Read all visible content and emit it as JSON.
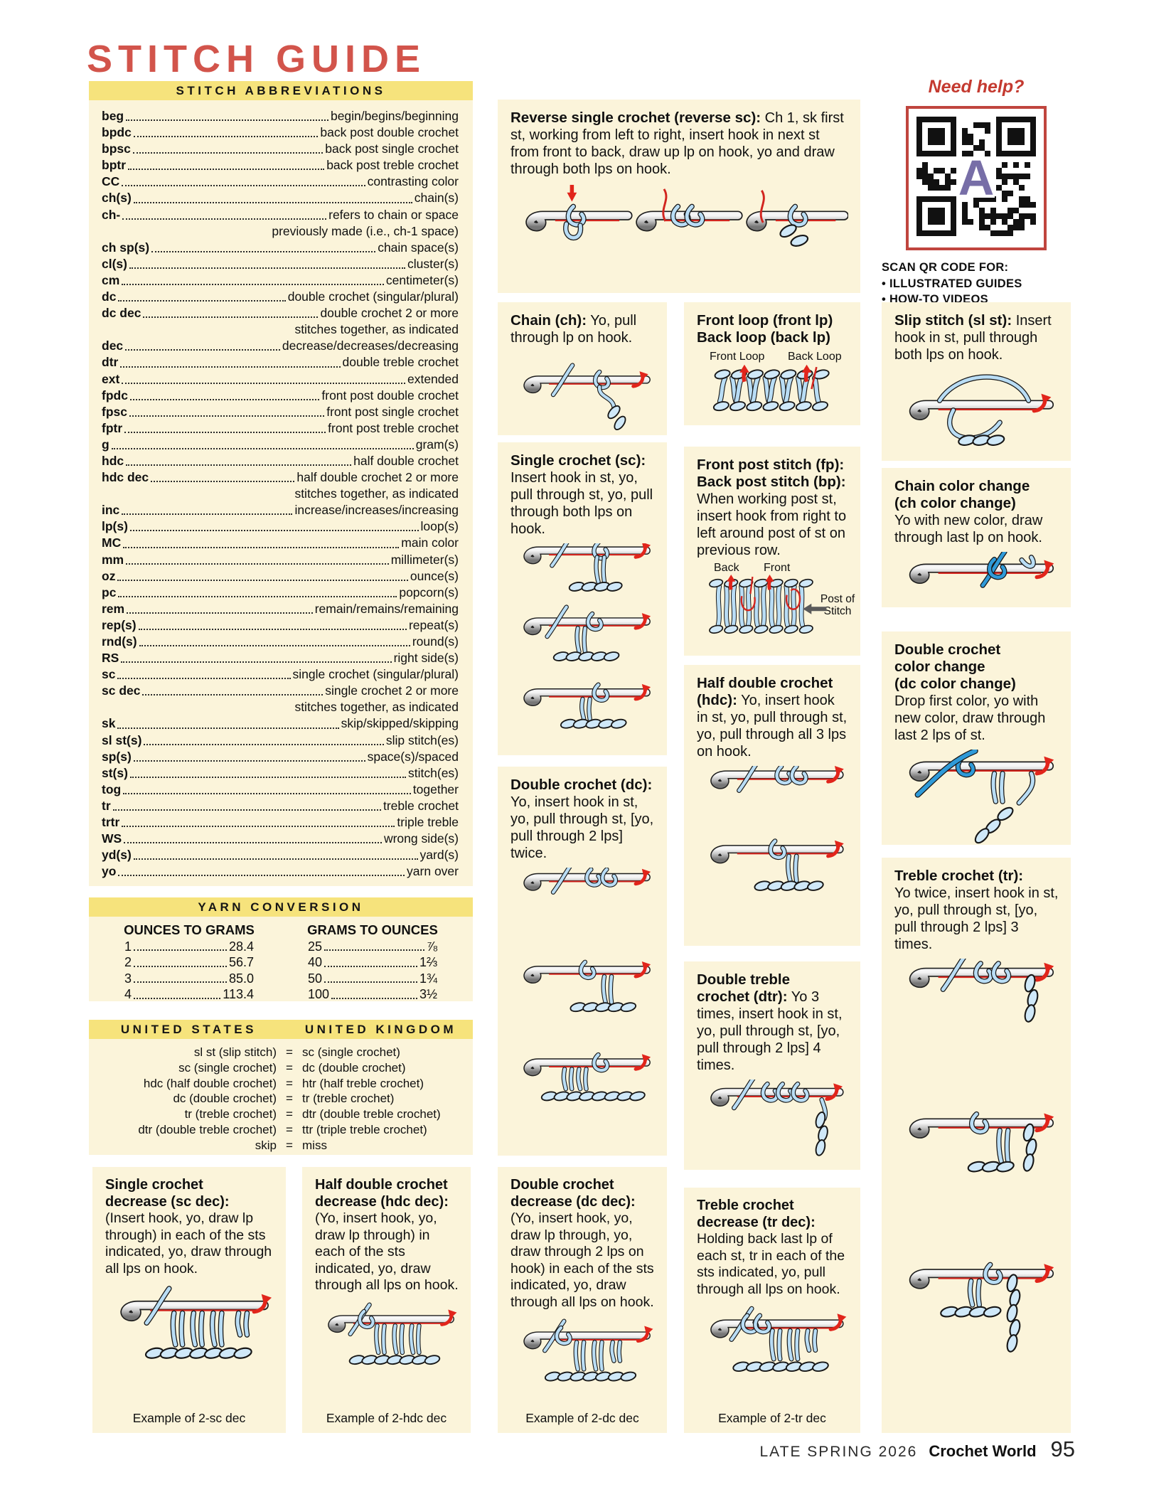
{
  "page": {
    "title": "STITCH GUIDE",
    "footer": {
      "issue": "LATE SPRING 2026",
      "magazine": "Crochet World",
      "page_number": "95"
    }
  },
  "help": {
    "title": "Need help?",
    "qr_letter": "A",
    "scan_heading": "SCAN QR CODE FOR:",
    "scan_items": [
      "• ILLUSTRATED GUIDES",
      "• HOW-TO VIDEOS"
    ]
  },
  "abbreviations": {
    "heading": "STITCH ABBREVIATIONS",
    "items": [
      {
        "abbr": "beg",
        "meaning": "begin/begins/beginning"
      },
      {
        "abbr": "bpdc",
        "meaning": "back post double crochet"
      },
      {
        "abbr": "bpsc",
        "meaning": "back post single crochet"
      },
      {
        "abbr": "bptr",
        "meaning": "back post treble crochet"
      },
      {
        "abbr": "CC",
        "meaning": "contrasting color"
      },
      {
        "abbr": "ch(s)",
        "meaning": "chain(s)"
      },
      {
        "abbr": "ch-",
        "meaning": "refers to chain or space",
        "cont": "previously made (i.e., ch-1 space)"
      },
      {
        "abbr": "ch sp(s)",
        "meaning": "chain space(s)"
      },
      {
        "abbr": "cl(s)",
        "meaning": "cluster(s)"
      },
      {
        "abbr": "cm",
        "meaning": "centimeter(s)"
      },
      {
        "abbr": "dc",
        "meaning": "double crochet (singular/plural)"
      },
      {
        "abbr": "dc dec",
        "meaning": "double crochet 2 or more",
        "cont": "stitches together, as indicated"
      },
      {
        "abbr": "dec",
        "meaning": "decrease/decreases/decreasing"
      },
      {
        "abbr": "dtr",
        "meaning": "double treble crochet"
      },
      {
        "abbr": "ext",
        "meaning": "extended"
      },
      {
        "abbr": "fpdc",
        "meaning": "front post double crochet"
      },
      {
        "abbr": "fpsc",
        "meaning": "front post single crochet"
      },
      {
        "abbr": "fptr",
        "meaning": "front post treble crochet"
      },
      {
        "abbr": "g",
        "meaning": "gram(s)"
      },
      {
        "abbr": "hdc",
        "meaning": "half double crochet"
      },
      {
        "abbr": "hdc dec",
        "meaning": "half double crochet 2 or more",
        "cont": "stitches together, as indicated"
      },
      {
        "abbr": "inc",
        "meaning": "increase/increases/increasing"
      },
      {
        "abbr": "lp(s)",
        "meaning": "loop(s)"
      },
      {
        "abbr": "MC",
        "meaning": "main color"
      },
      {
        "abbr": "mm",
        "meaning": "millimeter(s)"
      },
      {
        "abbr": "oz",
        "meaning": "ounce(s)"
      },
      {
        "abbr": "pc",
        "meaning": "popcorn(s)"
      },
      {
        "abbr": "rem",
        "meaning": "remain/remains/remaining"
      },
      {
        "abbr": "rep(s)",
        "meaning": "repeat(s)"
      },
      {
        "abbr": "rnd(s)",
        "meaning": "round(s)"
      },
      {
        "abbr": "RS",
        "meaning": "right side(s)"
      },
      {
        "abbr": "sc",
        "meaning": "single crochet (singular/plural)"
      },
      {
        "abbr": "sc dec",
        "meaning": "single crochet 2 or more",
        "cont": "stitches together, as indicated"
      },
      {
        "abbr": "sk",
        "meaning": "skip/skipped/skipping"
      },
      {
        "abbr": "sl st(s)",
        "meaning": "slip stitch(es)"
      },
      {
        "abbr": "sp(s)",
        "meaning": "space(s)/spaced"
      },
      {
        "abbr": "st(s)",
        "meaning": "stitch(es)"
      },
      {
        "abbr": "tog",
        "meaning": "together"
      },
      {
        "abbr": "tr",
        "meaning": "treble crochet"
      },
      {
        "abbr": "trtr",
        "meaning": "triple treble"
      },
      {
        "abbr": "WS",
        "meaning": "wrong side(s)"
      },
      {
        "abbr": "yd(s)",
        "meaning": "yard(s)"
      },
      {
        "abbr": "yo",
        "meaning": "yarn over"
      }
    ]
  },
  "yarn_conversion": {
    "heading": "YARN CONVERSION",
    "left": {
      "title": "OUNCES TO GRAMS",
      "rows": [
        [
          "1",
          "28.4"
        ],
        [
          "2",
          "56.7"
        ],
        [
          "3",
          "85.0"
        ],
        [
          "4",
          "113.4"
        ]
      ]
    },
    "right": {
      "title": "GRAMS TO OUNCES",
      "rows": [
        [
          "25",
          "⅞"
        ],
        [
          "40",
          "1⅔"
        ],
        [
          "50",
          "1¾"
        ],
        [
          "100",
          "3½"
        ]
      ]
    }
  },
  "us_uk": {
    "heading_left": "UNITED STATES",
    "heading_right": "UNITED KINGDOM",
    "equals": "=",
    "rows": [
      {
        "us": "sl st (slip stitch)",
        "uk": "sc (single crochet)"
      },
      {
        "us": "sc (single crochet)",
        "uk": "dc (double crochet)"
      },
      {
        "us": "hdc (half double crochet)",
        "uk": "htr (half treble crochet)"
      },
      {
        "us": "dc (double crochet)",
        "uk": "tr (treble crochet)"
      },
      {
        "us": "tr (treble crochet)",
        "uk": "dtr (double treble crochet)"
      },
      {
        "us": "dtr (double treble crochet)",
        "uk": "ttr (triple treble crochet)"
      },
      {
        "us": "skip",
        "uk": "miss"
      }
    ]
  },
  "sections": {
    "reverse_sc": {
      "title": "Reverse single crochet (reverse sc):",
      "body": "Ch 1, sk first st, working from left to right, insert hook in next st from front to back, draw up lp on hook, yo and draw through both lps on hook."
    },
    "chain": {
      "title": "Chain (ch):",
      "body": "Yo, pull through lp on hook."
    },
    "front_back_loop": {
      "title": "Front loop (front lp)\nBack loop (back lp)",
      "label_front": "Front Loop",
      "label_back": "Back Loop"
    },
    "single_crochet": {
      "title": "Single crochet (sc):\n",
      "body": "Insert hook in st, yo, pull through st, yo, pull through both lps on hook."
    },
    "front_post": {
      "title": "Front post stitch (fp):\nBack post stitch (bp):\n",
      "body": "When working post st, insert hook from right to left around post of st on previous row.",
      "label_back": "Back",
      "label_front": "Front",
      "label_post": "Post of Stitch"
    },
    "double_crochet": {
      "title": "Double crochet (dc):\n",
      "body": "Yo, insert hook in st, yo, pull through st, [yo, pull through 2 lps] twice."
    },
    "half_double": {
      "title": "Half double crochet (hdc):",
      "body": "Yo, insert hook in st, yo, pull through st, yo, pull through all 3 lps on hook."
    },
    "double_treble": {
      "title": "Double treble\ncrochet (dtr):",
      "body": "Yo 3 times, insert hook in st, yo, pull through st, [yo, pull through 2 lps] 4 times."
    },
    "slip_stitch": {
      "title": "Slip stitch (sl st):",
      "body": "Insert hook in st, pull through both lps on hook."
    },
    "chain_color": {
      "title": "Chain color change\n(ch color change)\n",
      "body": "Yo with new color, draw through last lp on hook."
    },
    "dc_color": {
      "title": "Double crochet\ncolor change\n(dc color change)\n",
      "body": "Drop first color, yo with new color, draw through last 2 lps of st."
    },
    "treble": {
      "title": "Treble crochet (tr):\n",
      "body": "Yo twice, insert hook in st, yo, pull through st, [yo, pull through 2 lps] 3 times."
    },
    "sc_dec": {
      "title": "Single crochet\ndecrease (sc dec):\n",
      "body": "(Insert hook, yo, draw lp through) in each of the sts indicated, yo, draw through all lps on hook.",
      "caption": "Example of 2-sc dec"
    },
    "hdc_dec": {
      "title": "Half double crochet\ndecrease (hdc dec):\n",
      "body": "(Yo, insert hook, yo, draw lp through) in each of the sts indicated, yo, draw through all lps on hook.",
      "caption": "Example of 2-hdc dec"
    },
    "dc_dec": {
      "title": "Double crochet\ndecrease (dc dec):",
      "body": "(Yo, insert hook, yo, draw lp through, yo, draw through 2 lps on hook) in each of the sts indicated, yo, draw through all lps on hook.",
      "caption": "Example of 2-dc dec"
    },
    "tr_dec": {
      "title": "Treble crochet\ndecrease (tr dec):",
      "body": "Holding back last lp of each st, tr in each of the sts indicated, yo, pull through all lps on hook.",
      "caption": "Example of 2-tr dec"
    }
  },
  "colors": {
    "accent_red": "#d2544b",
    "bar_yellow": "#f6e37c",
    "panel_cream": "#fbf4da",
    "yarn_blue": "#b9ddf5",
    "yarn_new_color_blue": "#2f9ad8",
    "arrow_red": "#e1251b",
    "qr_border_red": "#c0453e",
    "qr_letter_purple": "#776ea7"
  }
}
